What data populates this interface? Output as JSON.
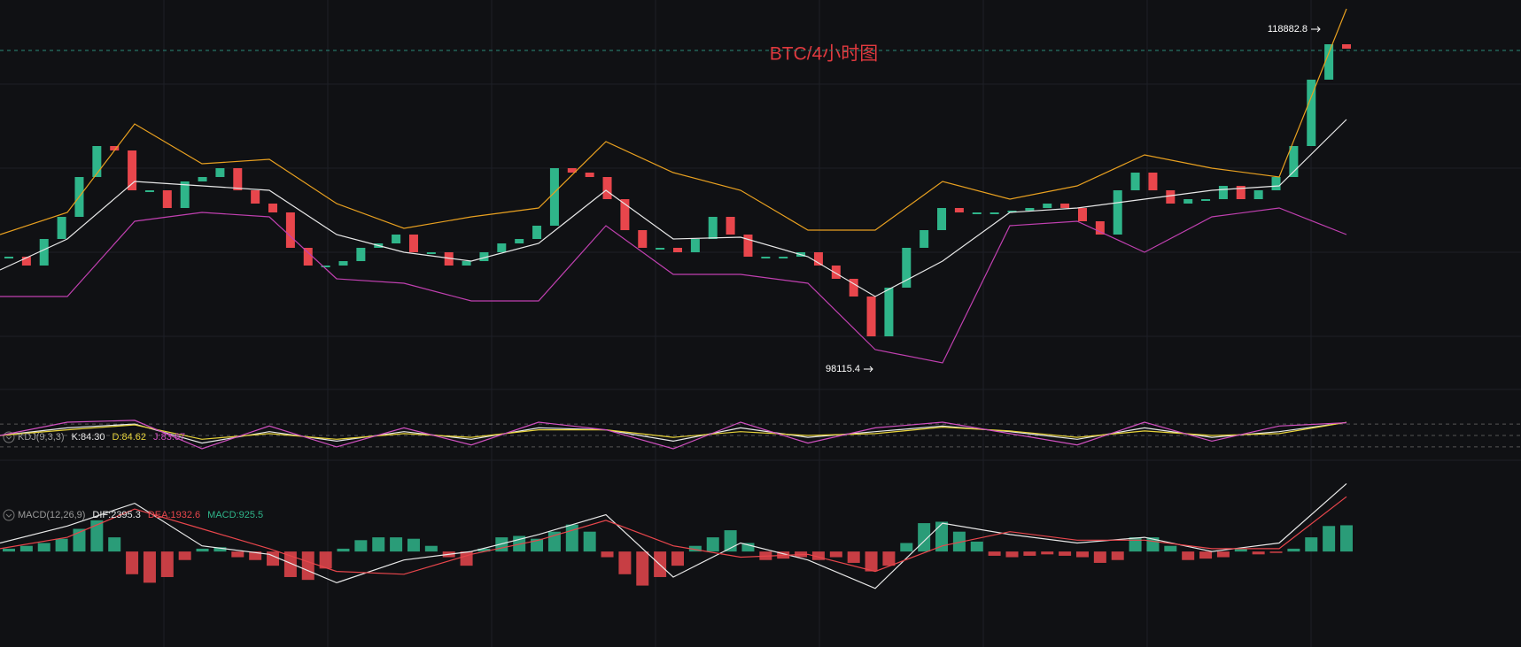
{
  "title": "BTC/4小时图",
  "chart_data": [
    {
      "type": "candlestick",
      "values": [
        104984,
        104444,
        106066,
        107418,
        109852,
        111745,
        111474,
        109041,
        109041,
        107959,
        109582,
        109852,
        110393,
        109041,
        108230,
        107689,
        105526,
        104444,
        104444,
        104714,
        105526,
        105796,
        106337,
        105255,
        105255,
        104444,
        104714,
        105255,
        105796,
        106066,
        106878,
        110393,
        110122,
        109852,
        108500,
        106607,
        105526,
        105526,
        105255,
        106066,
        107418,
        106337,
        104984,
        104984,
        104984,
        105255,
        104444,
        103633,
        102551,
        100118,
        103092,
        105526,
        106607,
        107959,
        107689,
        107689,
        107689,
        107797,
        107959,
        108230,
        107959,
        107148,
        106337,
        109041,
        110122,
        109041,
        108230,
        108500,
        108500,
        109311,
        108500,
        109041,
        109852,
        111745,
        115801,
        117964,
        117694
      ],
      "up_color": "#2fb58a",
      "down_color": "#e8464c",
      "series": [
        {
          "color": "#e8a020",
          "values": [
            106337,
            107689,
            113097,
            110663,
            110934,
            108230,
            106716,
            107418,
            107959,
            112015,
            110122,
            109041,
            106607,
            106607,
            109582,
            108500,
            109311,
            111204,
            110393,
            109852,
            120127
          ]
        },
        {
          "color": "#e8e8e8",
          "values": [
            104174,
            106066,
            109582,
            109311,
            109041,
            106337,
            105255,
            104714,
            105796,
            109041,
            106066,
            106175,
            104984,
            102551,
            104714,
            107689,
            107959,
            108500,
            109041,
            109311,
            113367
          ]
        },
        {
          "color": "#c040b0",
          "values": [
            102551,
            102551,
            107148,
            107689,
            107418,
            103633,
            103363,
            102281,
            102281,
            106878,
            103903,
            103903,
            103363,
            99306,
            98495,
            106878,
            107148,
            105255,
            107418,
            107959,
            106337
          ]
        }
      ],
      "annotations": [
        118882.8,
        98115.4
      ],
      "price_line": 117585,
      "ylim": [
        97414,
        120668
      ]
    },
    {
      "type": "line",
      "title": "KDJ(9,3,3)",
      "series": [
        {
          "name": "K:84.30",
          "color": "#e8e8e8",
          "values": [
            50,
            70,
            80,
            30,
            60,
            35,
            60,
            40,
            70,
            65,
            35,
            70,
            45,
            60,
            75,
            60,
            40,
            70,
            45,
            60,
            84.3
          ]
        },
        {
          "name": "D:84.62",
          "color": "#e6d23a",
          "values": [
            50,
            65,
            78,
            40,
            55,
            40,
            55,
            45,
            65,
            65,
            45,
            60,
            50,
            55,
            72,
            62,
            45,
            62,
            50,
            55,
            84.62
          ]
        },
        {
          "name": "J:83.67",
          "color": "#d050c0",
          "values": [
            50,
            85,
            90,
            15,
            75,
            20,
            70,
            25,
            85,
            65,
            15,
            85,
            30,
            70,
            85,
            55,
            25,
            85,
            35,
            75,
            83.67
          ]
        }
      ],
      "levels": [
        20,
        50,
        80
      ],
      "ylim": [
        -20,
        120
      ]
    },
    {
      "type": "macd",
      "title": "MACD(12,26,9)",
      "series": [
        {
          "name": "DIF:2395.3",
          "color": "#e8e8e8",
          "values": [
            300,
            900,
            1700,
            200,
            -100,
            -1100,
            -300,
            0,
            600,
            1300,
            -900,
            300,
            -300,
            -1300,
            1000,
            600,
            300,
            500,
            0,
            300,
            2395.3
          ]
        },
        {
          "name": "DEA:1932.6",
          "color": "#e8464c",
          "values": [
            100,
            500,
            1500,
            800,
            100,
            -700,
            -800,
            -100,
            400,
            1100,
            200,
            -200,
            -100,
            -700,
            200,
            700,
            400,
            400,
            100,
            100,
            1932.6
          ]
        }
      ],
      "bars": {
        "name": "MACD:925.5",
        "up_color": "#2fb58a",
        "down_color": "#e8464c",
        "values": [
          100,
          200,
          300,
          450,
          800,
          1100,
          500,
          -800,
          -1100,
          -900,
          -300,
          100,
          150,
          -200,
          -300,
          -500,
          -900,
          -1000,
          -600,
          100,
          400,
          500,
          500,
          450,
          200,
          -200,
          -500,
          100,
          500,
          550,
          450,
          700,
          950,
          700,
          -200,
          -800,
          -1200,
          -900,
          -500,
          200,
          500,
          750,
          300,
          -300,
          -250,
          -200,
          -300,
          -200,
          -400,
          -700,
          -500,
          300,
          1000,
          1050,
          700,
          350,
          -150,
          -200,
          -150,
          -100,
          -150,
          -200,
          -400,
          -300,
          500,
          500,
          200,
          -300,
          -250,
          -200,
          100,
          -100,
          -50,
          100,
          500,
          900,
          925.5
        ]
      },
      "ylim": [
        -1400,
        2500
      ]
    }
  ]
}
